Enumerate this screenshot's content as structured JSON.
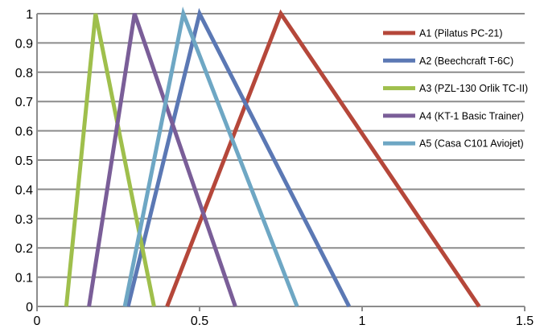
{
  "chart_data": {
    "type": "line",
    "title": "",
    "xlabel": "",
    "ylabel": "",
    "xlim": [
      0,
      1.5
    ],
    "ylim": [
      0,
      1
    ],
    "xticks": [
      "0",
      "0.5",
      "1",
      "1.5"
    ],
    "yticks": [
      "0",
      "0.1",
      "0.2",
      "0.3",
      "0.4",
      "0.5",
      "0.6",
      "0.7",
      "0.8",
      "0.9",
      "1"
    ],
    "grid": true,
    "legend_position": "top-right",
    "series": [
      {
        "name": "A1 (Pilatus  PC-21)",
        "color": "#b5473a",
        "points": [
          [
            0.4,
            0
          ],
          [
            0.75,
            1
          ],
          [
            1.36,
            0
          ]
        ]
      },
      {
        "name": "A2 (Beechcraft T-6C)",
        "color": "#5b78b4",
        "points": [
          [
            0.28,
            0
          ],
          [
            0.5,
            1
          ],
          [
            0.96,
            0
          ]
        ]
      },
      {
        "name": "A3 (PZL-130  Orlik TC-II)",
        "color": "#9fbf4c",
        "points": [
          [
            0.09,
            0
          ],
          [
            0.18,
            1
          ],
          [
            0.36,
            0
          ]
        ]
      },
      {
        "name": "A4 (KT-1 Basic Trainer)",
        "color": "#7a5e98",
        "points": [
          [
            0.16,
            0
          ],
          [
            0.3,
            1
          ],
          [
            0.61,
            0
          ]
        ]
      },
      {
        "name": "A5 (Casa C101  Aviojet)",
        "color": "#6ea7c4",
        "points": [
          [
            0.27,
            0
          ],
          [
            0.45,
            1
          ],
          [
            0.8,
            0
          ]
        ]
      }
    ]
  }
}
